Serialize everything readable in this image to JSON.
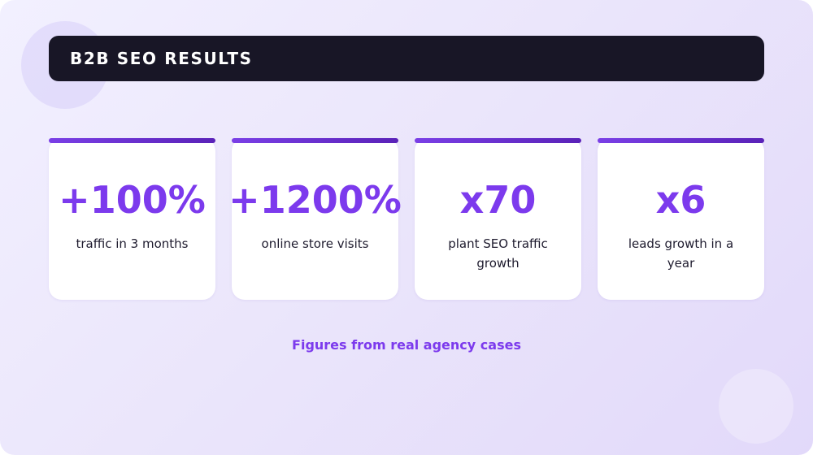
{
  "header": {
    "title": "B2B SEO RESULTS"
  },
  "stats": [
    {
      "value": "+100%",
      "label": "traffic in 3 months"
    },
    {
      "value": "+1200%",
      "label": "online store visits"
    },
    {
      "value": "x70",
      "label": "plant SEO traffic growth"
    },
    {
      "value": "x6",
      "label": "leads growth in a year"
    }
  ],
  "footer": {
    "note": "Figures from real agency cases"
  },
  "colors": {
    "accent": "#7c3aed",
    "title_bar": "#181626",
    "card_background": "#ffffff",
    "text_dark": "#1e1b2e"
  }
}
